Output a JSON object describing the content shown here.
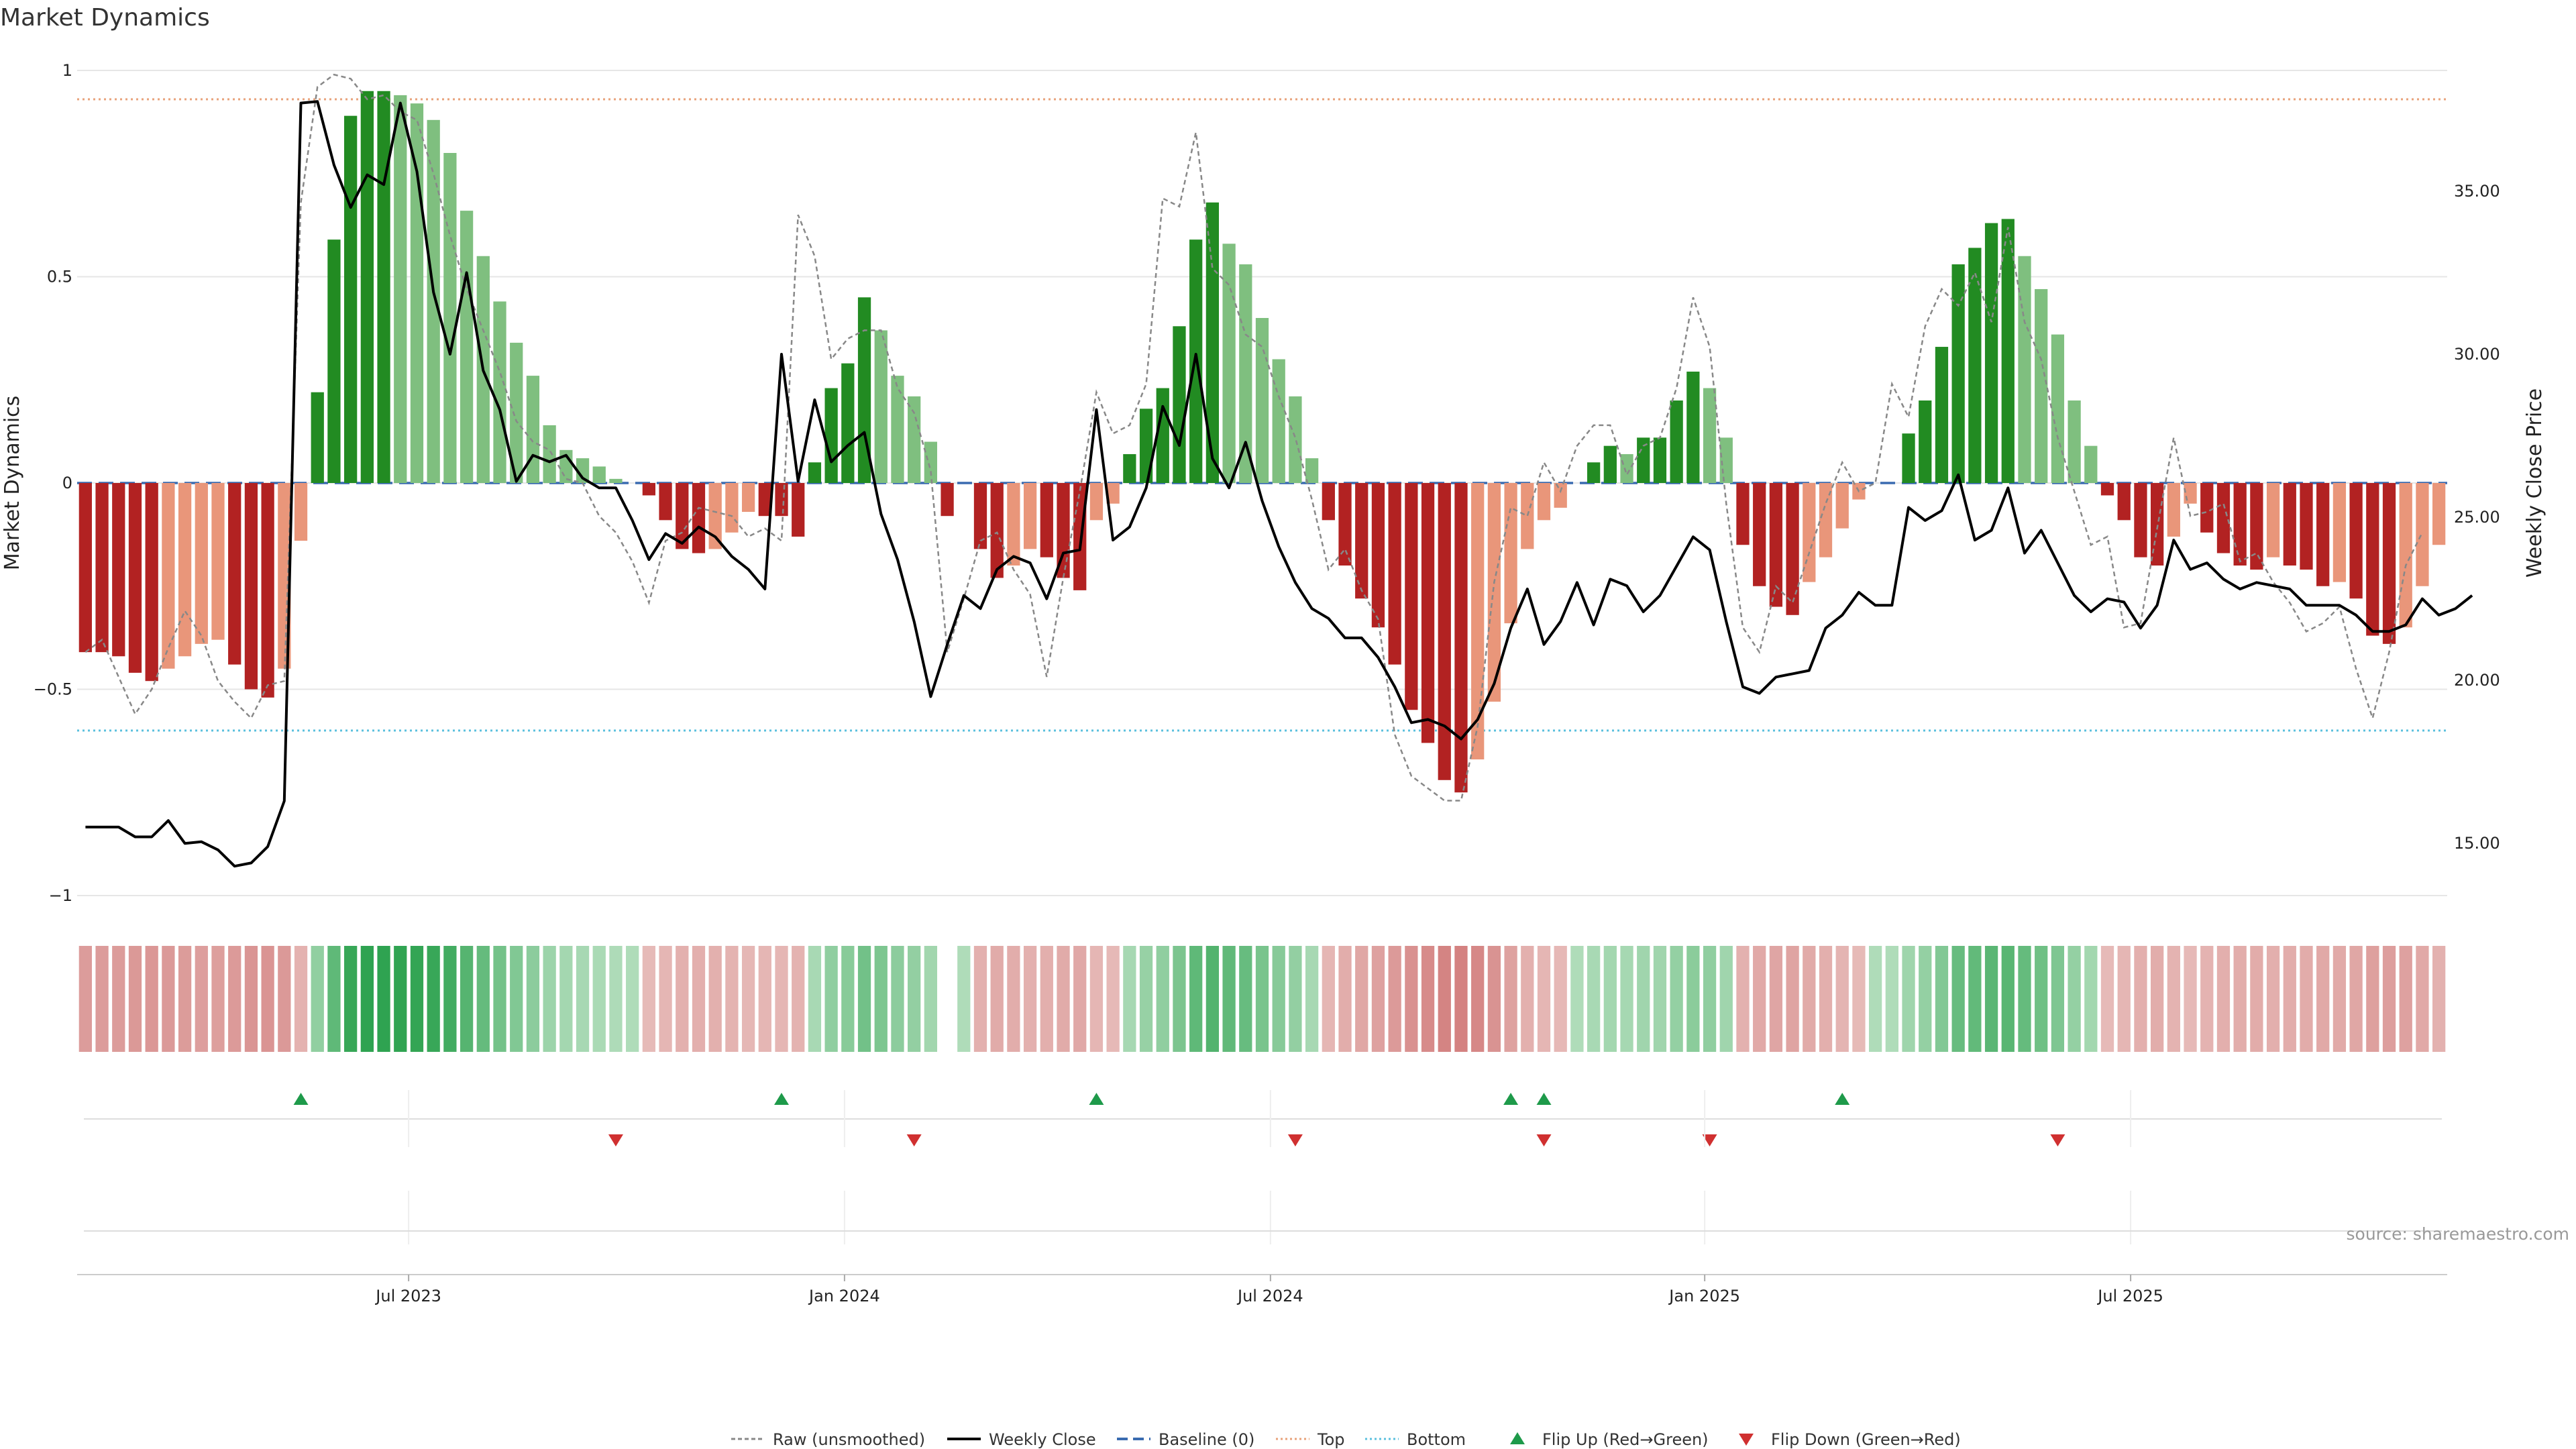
{
  "title": "Market Dynamics",
  "source": "source: sharemaestro.com",
  "colors": {
    "pos_strong": "#228B22",
    "pos_light": "#7FBF7F",
    "neg_strong": "#B22222",
    "neg_light": "#E9967A",
    "close": "#000000",
    "raw": "#888888",
    "baseline": "#3A6BB0",
    "top": "#E8A27A",
    "bottom": "#5BC0DE",
    "flip_up": "#1E9A4A",
    "flip_down": "#D03030"
  },
  "chart_data": {
    "type": "bar",
    "title": "Market Dynamics",
    "ylabel": "Market Dynamics",
    "y2label": "Weekly Close Price",
    "ylim": [
      -1,
      1
    ],
    "yticks": [
      {
        "v": 1,
        "label": "1"
      },
      {
        "v": 0.5,
        "label": "0.5"
      },
      {
        "v": 0,
        "label": "0"
      },
      {
        "v": -0.5,
        "label": "−0.5"
      },
      {
        "v": -1,
        "label": "−1"
      }
    ],
    "y2lim": [
      13.4,
      38.7
    ],
    "y2ticks": [
      {
        "v": 35,
        "label": "35.00"
      },
      {
        "v": 30,
        "label": "30.00"
      },
      {
        "v": 25,
        "label": "25.00"
      },
      {
        "v": 20,
        "label": "20.00"
      },
      {
        "v": 15,
        "label": "15.00"
      }
    ],
    "xlim": [
      -0.5,
      142.5
    ],
    "xticks": [
      {
        "i": 19.5,
        "label": "Jul 2023"
      },
      {
        "i": 45.8,
        "label": "Jan 2024"
      },
      {
        "i": 71.5,
        "label": "Jul 2024"
      },
      {
        "i": 97.7,
        "label": "Jan 2025"
      },
      {
        "i": 123.4,
        "label": "Jul 2025"
      }
    ],
    "top_level": 0.93,
    "bottom_level": -0.6,
    "baseline": 0,
    "bars": [
      -0.41,
      -0.41,
      -0.42,
      -0.46,
      -0.48,
      -0.45,
      -0.42,
      -0.39,
      -0.38,
      -0.44,
      -0.5,
      -0.52,
      -0.45,
      -0.14,
      0.22,
      0.59,
      0.89,
      0.95,
      0.95,
      0.94,
      0.92,
      0.88,
      0.8,
      0.66,
      0.55,
      0.44,
      0.34,
      0.26,
      0.14,
      0.08,
      0.06,
      0.04,
      0.01,
      0,
      -0.03,
      -0.09,
      -0.16,
      -0.17,
      -0.16,
      -0.12,
      -0.07,
      -0.08,
      -0.08,
      -0.13,
      0.05,
      0.23,
      0.29,
      0.45,
      0.37,
      0.26,
      0.21,
      0.1,
      -0.08,
      0,
      -0.16,
      -0.23,
      -0.2,
      -0.16,
      -0.18,
      -0.23,
      -0.26,
      -0.09,
      -0.05,
      0.07,
      0.18,
      0.23,
      0.38,
      0.59,
      0.68,
      0.58,
      0.53,
      0.4,
      0.3,
      0.21,
      0.06,
      -0.09,
      -0.2,
      -0.28,
      -0.35,
      -0.44,
      -0.55,
      -0.63,
      -0.72,
      -0.75,
      -0.67,
      -0.53,
      -0.34,
      -0.16,
      -0.09,
      -0.06,
      0,
      0.05,
      0.09,
      0.07,
      0.11,
      0.11,
      0.2,
      0.27,
      0.23,
      0.11,
      -0.15,
      -0.25,
      -0.3,
      -0.32,
      -0.24,
      -0.18,
      -0.11,
      -0.04,
      0,
      0,
      0.12,
      0.2,
      0.33,
      0.53,
      0.57,
      0.63,
      0.64,
      0.55,
      0.47,
      0.36,
      0.2,
      0.09,
      -0.03,
      -0.09,
      -0.18,
      -0.2,
      -0.13,
      -0.05,
      -0.12,
      -0.17,
      -0.2,
      -0.21,
      -0.18,
      -0.2,
      -0.21,
      -0.25,
      -0.24,
      -0.28,
      -0.37,
      -0.39,
      -0.35,
      -0.25,
      -0.15
    ],
    "raw": [
      -0.41,
      -0.38,
      -0.47,
      -0.56,
      -0.5,
      -0.4,
      -0.31,
      -0.37,
      -0.48,
      -0.53,
      -0.57,
      -0.49,
      -0.48,
      0.68,
      0.96,
      0.99,
      0.98,
      0.93,
      0.94,
      0.9,
      0.88,
      0.75,
      0.6,
      0.47,
      0.37,
      0.27,
      0.15,
      0.1,
      0.08,
      0.01,
      0,
      -0.08,
      -0.12,
      -0.19,
      -0.29,
      -0.14,
      -0.12,
      -0.06,
      -0.07,
      -0.08,
      -0.13,
      -0.11,
      -0.14,
      0.65,
      0.55,
      0.3,
      0.35,
      0.37,
      0.37,
      0.23,
      0.17,
      0.03,
      -0.41,
      -0.28,
      -0.14,
      -0.12,
      -0.21,
      -0.27,
      -0.47,
      -0.23,
      -0.02,
      0.22,
      0.12,
      0.14,
      0.24,
      0.69,
      0.67,
      0.85,
      0.52,
      0.48,
      0.36,
      0.33,
      0.21,
      0.11,
      -0.04,
      -0.21,
      -0.16,
      -0.26,
      -0.33,
      -0.61,
      -0.71,
      -0.74,
      -0.77,
      -0.77,
      -0.59,
      -0.24,
      -0.06,
      -0.08,
      0.05,
      -0.02,
      0.09,
      0.14,
      0.14,
      0.02,
      0.09,
      0.11,
      0.23,
      0.45,
      0.33,
      -0.05,
      -0.35,
      -0.41,
      -0.25,
      -0.29,
      -0.17,
      -0.05,
      0.05,
      -0.02,
      0,
      0.24,
      0.16,
      0.38,
      0.47,
      0.43,
      0.51,
      0.39,
      0.62,
      0.39,
      0.3,
      0.11,
      -0.02,
      -0.15,
      -0.13,
      -0.35,
      -0.34,
      -0.11,
      0.11,
      -0.08,
      -0.07,
      -0.05,
      -0.19,
      -0.17,
      -0.24,
      -0.29,
      -0.36,
      -0.34,
      -0.3,
      -0.45,
      -0.57,
      -0.41,
      -0.2,
      -0.12
    ],
    "close": [
      15.5,
      15.5,
      15.5,
      15.2,
      15.2,
      15.7,
      15.0,
      15.05,
      14.8,
      14.3,
      14.4,
      14.9,
      16.3,
      37.7,
      37.75,
      35.8,
      34.5,
      35.5,
      35.2,
      37.7,
      35.6,
      31.9,
      30.0,
      32.5,
      29.5,
      28.3,
      26.1,
      26.9,
      26.7,
      26.9,
      26.2,
      25.9,
      25.9,
      24.9,
      23.7,
      24.5,
      24.2,
      24.7,
      24.4,
      23.8,
      23.4,
      22.8,
      30.0,
      26.1,
      28.6,
      26.7,
      27.2,
      27.6,
      25.1,
      23.7,
      21.8,
      19.5,
      21.1,
      22.6,
      22.2,
      23.4,
      23.8,
      23.6,
      22.5,
      23.9,
      24.0,
      28.3,
      24.3,
      24.7,
      25.9,
      28.4,
      27.2,
      30.0,
      26.8,
      25.9,
      27.3,
      25.5,
      24.1,
      23.0,
      22.2,
      21.9,
      21.3,
      21.3,
      20.7,
      19.8,
      18.7,
      18.8,
      18.6,
      18.2,
      18.8,
      19.9,
      21.6,
      22.8,
      21.1,
      21.8,
      23.0,
      21.7,
      23.1,
      22.9,
      22.1,
      22.6,
      23.5,
      24.4,
      24.0,
      21.8,
      19.8,
      19.6,
      20.1,
      20.2,
      20.3,
      21.6,
      22.0,
      22.7,
      22.3,
      22.3,
      25.3,
      24.9,
      25.2,
      26.3,
      24.3,
      24.6,
      25.9,
      23.9,
      24.6,
      23.6,
      22.6,
      22.1,
      22.5,
      22.4,
      21.6,
      22.3,
      24.3,
      23.4,
      23.6,
      23.1,
      22.8,
      23.0,
      22.9,
      22.8,
      22.3,
      22.3,
      22.3,
      22.0,
      21.5,
      21.5,
      21.7,
      22.5,
      22.0,
      22.2,
      22.6
    ],
    "heat_gap_index": 52,
    "heat_gap_after": 53,
    "flip_up": [
      13,
      42,
      61,
      86,
      88,
      106
    ],
    "flip_down": [
      32,
      50,
      73,
      88,
      98,
      119
    ],
    "legend": [
      {
        "kind": "raw",
        "label": "Raw (unsmoothed)"
      },
      {
        "kind": "close",
        "label": "Weekly Close"
      },
      {
        "kind": "baseline",
        "label": "Baseline (0)"
      },
      {
        "kind": "top",
        "label": "Top"
      },
      {
        "kind": "bottom",
        "label": "Bottom"
      },
      {
        "kind": "flip_up",
        "label": "Flip Up (Red→Green)"
      },
      {
        "kind": "flip_down",
        "label": "Flip Down (Green→Red)"
      }
    ]
  }
}
